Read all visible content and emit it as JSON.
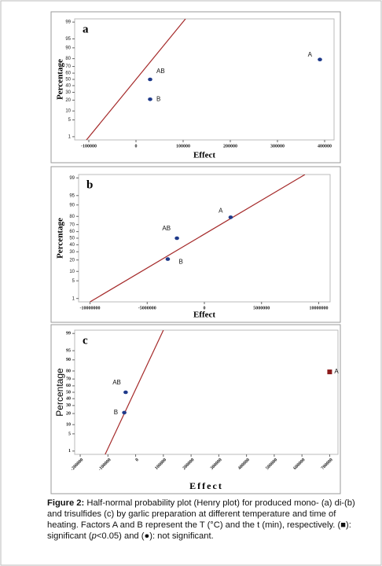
{
  "chart_data": [
    {
      "type": "scatter",
      "panel": "a",
      "x_label": "Effect",
      "y_label": "Percentage",
      "yscale": "probability",
      "xlim": [
        -130000,
        420000
      ],
      "xticks": [
        -100000,
        0,
        100000,
        200000,
        300000,
        400000
      ],
      "ylim": [
        0.7,
        99.3
      ],
      "yticks": [
        1,
        5,
        10,
        20,
        30,
        40,
        50,
        60,
        70,
        80,
        90,
        95,
        99
      ],
      "point_labels": [
        "A",
        "AB",
        "B"
      ],
      "x": [
        390000,
        30000,
        30000
      ],
      "values": [
        79,
        50,
        21
      ],
      "colors": [
        "#1f3a8a",
        "#1f3a8a",
        "#1f3a8a"
      ],
      "markers": [
        "circle",
        "circle",
        "circle"
      ],
      "fit_line": {
        "x": [
          -105000,
          105000
        ],
        "y": [
          0.7,
          99.3
        ],
        "color": "#a52a2a"
      }
    },
    {
      "type": "scatter",
      "panel": "b",
      "x_label": "Effect",
      "y_label": "Percentage",
      "yscale": "probability",
      "xlim": [
        -11000000,
        11000000
      ],
      "xticks": [
        -10000000,
        -5000000,
        0,
        5000000,
        10000000
      ],
      "ylim": [
        0.7,
        99.3
      ],
      "yticks": [
        1,
        5,
        10,
        20,
        30,
        40,
        50,
        60,
        70,
        80,
        90,
        95,
        99
      ],
      "point_labels": [
        "A",
        "AB",
        "B"
      ],
      "x": [
        2300000,
        -2400000,
        -3200000
      ],
      "values": [
        79,
        50,
        21
      ],
      "colors": [
        "#1f3a8a",
        "#1f3a8a",
        "#1f3a8a"
      ],
      "markers": [
        "circle",
        "circle",
        "circle"
      ],
      "fit_line": {
        "x": [
          -10000000,
          8800000
        ],
        "y": [
          0.7,
          99.3
        ],
        "color": "#a52a2a"
      }
    },
    {
      "type": "scatter",
      "panel": "c",
      "x_label": "Effect",
      "y_label": "Percentage",
      "yscale": "probability",
      "xlim": [
        -220000,
        730000
      ],
      "xticks": [
        -200000,
        -100000,
        0,
        100000,
        200000,
        300000,
        400000,
        500000,
        600000,
        700000
      ],
      "ylim": [
        0.7,
        99.3
      ],
      "yticks": [
        1,
        5,
        10,
        20,
        30,
        40,
        50,
        60,
        70,
        80,
        90,
        95,
        99
      ],
      "point_labels": [
        "A",
        "AB",
        "B"
      ],
      "x": [
        700000,
        -36000,
        -41000
      ],
      "values": [
        79,
        50,
        21
      ],
      "colors": [
        "#8b1a1a",
        "#1f3a8a",
        "#1f3a8a"
      ],
      "markers": [
        "square",
        "circle",
        "circle"
      ],
      "fit_line": {
        "x": [
          -110000,
          100000
        ],
        "y": [
          0.7,
          99.3
        ],
        "color": "#a52a2a"
      }
    }
  ],
  "caption": {
    "label": "Figure 2:",
    "parts": [
      "Half-normal probability plot (Henry plot) for produced mono- (a) di-(b) and trisulfides (c) by garlic preparation at different temperature and time of heating. Factors A and B represent the T (°C) and the t (min), respectively. (■): significant (",
      "p",
      "<0.05) and (●): not significant."
    ]
  }
}
